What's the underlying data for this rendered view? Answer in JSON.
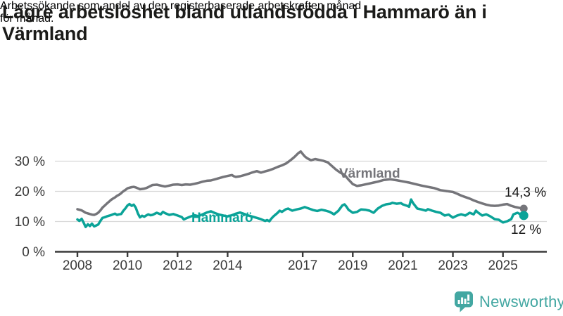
{
  "header": {
    "title_lines": [
      "Lägre arbetslöshet bland utlandsfödda i Hammarö än i",
      "Värmland"
    ],
    "subtitle_lines": [
      "Arbetssökande som andel av den registerbaserade arbetskraften månad",
      "för månad."
    ]
  },
  "chart_data": {
    "type": "line",
    "unit": "%",
    "x_axis": {
      "range_years": [
        2008.0,
        2025.83
      ],
      "ticks": [
        {
          "year": 2008,
          "label": "2008"
        },
        {
          "year": 2010,
          "label": "2010"
        },
        {
          "year": 2012,
          "label": "2012"
        },
        {
          "year": 2014,
          "label": "2014"
        },
        {
          "year": 2017,
          "label": "2017"
        },
        {
          "year": 2019,
          "label": "2019"
        },
        {
          "year": 2021,
          "label": "2021"
        },
        {
          "year": 2023,
          "label": "2023"
        },
        {
          "year": 2025,
          "label": "2025"
        }
      ]
    },
    "y_axis": {
      "range": [
        0,
        34.5
      ],
      "gridlines": true,
      "ticks": [
        {
          "value": 0,
          "label": "0 %"
        },
        {
          "value": 10,
          "label": "10 %"
        },
        {
          "value": 20,
          "label": "20 %"
        },
        {
          "value": 30,
          "label": "30 %"
        }
      ]
    },
    "colors": {
      "grid": "#d8d8d8",
      "axis": "#3a3a3a",
      "tick_text": "#3a3a3a"
    },
    "legend_position": "labels-on-lines",
    "series": [
      {
        "name": "Värmland",
        "color": "#75757a",
        "end_label": "14,3 %",
        "end_value": 14.3,
        "points": [
          [
            2008.0,
            14.1
          ],
          [
            2008.08,
            13.9
          ],
          [
            2008.17,
            13.7
          ],
          [
            2008.25,
            13.3
          ],
          [
            2008.33,
            12.9
          ],
          [
            2008.42,
            12.7
          ],
          [
            2008.5,
            12.5
          ],
          [
            2008.58,
            12.3
          ],
          [
            2008.67,
            12.2
          ],
          [
            2008.75,
            12.5
          ],
          [
            2008.83,
            12.9
          ],
          [
            2008.92,
            13.7
          ],
          [
            2009.0,
            14.6
          ],
          [
            2009.08,
            15.2
          ],
          [
            2009.17,
            15.9
          ],
          [
            2009.25,
            16.5
          ],
          [
            2009.33,
            17.1
          ],
          [
            2009.42,
            17.6
          ],
          [
            2009.5,
            18.0
          ],
          [
            2009.58,
            18.5
          ],
          [
            2009.67,
            18.9
          ],
          [
            2009.75,
            19.4
          ],
          [
            2009.83,
            20.0
          ],
          [
            2009.92,
            20.5
          ],
          [
            2010.0,
            21.0
          ],
          [
            2010.08,
            21.2
          ],
          [
            2010.17,
            21.4
          ],
          [
            2010.25,
            21.5
          ],
          [
            2010.33,
            21.3
          ],
          [
            2010.42,
            21.0
          ],
          [
            2010.5,
            20.7
          ],
          [
            2010.58,
            20.8
          ],
          [
            2010.67,
            20.9
          ],
          [
            2010.75,
            21.1
          ],
          [
            2010.83,
            21.4
          ],
          [
            2010.92,
            21.8
          ],
          [
            2011.0,
            22.1
          ],
          [
            2011.17,
            22.2
          ],
          [
            2011.33,
            21.9
          ],
          [
            2011.5,
            21.6
          ],
          [
            2011.67,
            21.9
          ],
          [
            2011.83,
            22.2
          ],
          [
            2012.0,
            22.3
          ],
          [
            2012.17,
            22.1
          ],
          [
            2012.33,
            22.3
          ],
          [
            2012.5,
            22.2
          ],
          [
            2012.67,
            22.5
          ],
          [
            2012.83,
            22.8
          ],
          [
            2013.0,
            23.2
          ],
          [
            2013.17,
            23.5
          ],
          [
            2013.33,
            23.6
          ],
          [
            2013.5,
            24.0
          ],
          [
            2013.67,
            24.4
          ],
          [
            2013.83,
            24.8
          ],
          [
            2014.0,
            25.1
          ],
          [
            2014.17,
            25.4
          ],
          [
            2014.25,
            25.0
          ],
          [
            2014.33,
            24.8
          ],
          [
            2014.5,
            25.0
          ],
          [
            2014.67,
            25.4
          ],
          [
            2014.83,
            25.8
          ],
          [
            2015.0,
            26.3
          ],
          [
            2015.17,
            26.7
          ],
          [
            2015.33,
            26.2
          ],
          [
            2015.5,
            26.6
          ],
          [
            2015.67,
            27.0
          ],
          [
            2015.83,
            27.5
          ],
          [
            2016.0,
            28.1
          ],
          [
            2016.17,
            28.6
          ],
          [
            2016.33,
            29.2
          ],
          [
            2016.5,
            30.2
          ],
          [
            2016.67,
            31.4
          ],
          [
            2016.83,
            32.7
          ],
          [
            2016.92,
            33.2
          ],
          [
            2017.0,
            32.4
          ],
          [
            2017.08,
            31.6
          ],
          [
            2017.17,
            31.0
          ],
          [
            2017.33,
            30.3
          ],
          [
            2017.5,
            30.7
          ],
          [
            2017.67,
            30.4
          ],
          [
            2017.83,
            30.1
          ],
          [
            2018.0,
            29.6
          ],
          [
            2018.17,
            28.4
          ],
          [
            2018.33,
            27.2
          ],
          [
            2018.5,
            26.2
          ],
          [
            2018.67,
            25.5
          ],
          [
            2018.83,
            23.9
          ],
          [
            2019.0,
            22.4
          ],
          [
            2019.17,
            21.8
          ],
          [
            2019.33,
            22.0
          ],
          [
            2019.5,
            22.3
          ],
          [
            2019.67,
            22.6
          ],
          [
            2019.83,
            22.9
          ],
          [
            2020.0,
            23.2
          ],
          [
            2020.25,
            23.8
          ],
          [
            2020.5,
            24.0
          ],
          [
            2020.75,
            23.7
          ],
          [
            2021.0,
            23.3
          ],
          [
            2021.25,
            22.9
          ],
          [
            2021.5,
            22.4
          ],
          [
            2021.75,
            21.9
          ],
          [
            2022.0,
            21.5
          ],
          [
            2022.25,
            21.1
          ],
          [
            2022.5,
            20.4
          ],
          [
            2022.75,
            20.1
          ],
          [
            2023.0,
            19.8
          ],
          [
            2023.17,
            19.2
          ],
          [
            2023.33,
            18.6
          ],
          [
            2023.5,
            18.1
          ],
          [
            2023.67,
            17.6
          ],
          [
            2023.83,
            17.0
          ],
          [
            2024.0,
            16.5
          ],
          [
            2024.17,
            16.0
          ],
          [
            2024.33,
            15.6
          ],
          [
            2024.5,
            15.3
          ],
          [
            2024.67,
            15.2
          ],
          [
            2024.83,
            15.3
          ],
          [
            2025.0,
            15.6
          ],
          [
            2025.17,
            15.8
          ],
          [
            2025.33,
            15.2
          ],
          [
            2025.5,
            14.8
          ],
          [
            2025.67,
            14.5
          ],
          [
            2025.83,
            14.3
          ]
        ]
      },
      {
        "name": "Hammarö",
        "color": "#0ba398",
        "end_label": "12 %",
        "end_value": 12.0,
        "points": [
          [
            2008.0,
            10.7
          ],
          [
            2008.08,
            10.2
          ],
          [
            2008.17,
            10.9
          ],
          [
            2008.25,
            9.6
          ],
          [
            2008.33,
            8.2
          ],
          [
            2008.42,
            9.1
          ],
          [
            2008.5,
            8.5
          ],
          [
            2008.58,
            9.3
          ],
          [
            2008.67,
            8.4
          ],
          [
            2008.75,
            8.7
          ],
          [
            2008.83,
            9.0
          ],
          [
            2008.92,
            10.2
          ],
          [
            2009.0,
            11.2
          ],
          [
            2009.08,
            11.4
          ],
          [
            2009.17,
            11.7
          ],
          [
            2009.25,
            11.9
          ],
          [
            2009.33,
            12.1
          ],
          [
            2009.42,
            12.4
          ],
          [
            2009.5,
            12.6
          ],
          [
            2009.58,
            12.2
          ],
          [
            2009.67,
            12.4
          ],
          [
            2009.75,
            12.5
          ],
          [
            2009.83,
            13.5
          ],
          [
            2009.92,
            14.4
          ],
          [
            2010.0,
            15.3
          ],
          [
            2010.08,
            15.8
          ],
          [
            2010.17,
            15.2
          ],
          [
            2010.25,
            15.6
          ],
          [
            2010.33,
            14.6
          ],
          [
            2010.42,
            12.6
          ],
          [
            2010.5,
            11.4
          ],
          [
            2010.58,
            11.9
          ],
          [
            2010.67,
            11.6
          ],
          [
            2010.75,
            12.0
          ],
          [
            2010.83,
            12.4
          ],
          [
            2010.92,
            12.1
          ],
          [
            2011.0,
            12.2
          ],
          [
            2011.17,
            12.9
          ],
          [
            2011.33,
            12.4
          ],
          [
            2011.42,
            13.2
          ],
          [
            2011.5,
            12.8
          ],
          [
            2011.67,
            12.2
          ],
          [
            2011.83,
            12.5
          ],
          [
            2012.0,
            12.0
          ],
          [
            2012.17,
            11.5
          ],
          [
            2012.25,
            10.7
          ],
          [
            2012.33,
            11.0
          ],
          [
            2012.5,
            11.6
          ],
          [
            2012.67,
            12.1
          ],
          [
            2012.83,
            11.8
          ],
          [
            2013.0,
            12.4
          ],
          [
            2013.17,
            13.0
          ],
          [
            2013.33,
            13.4
          ],
          [
            2013.5,
            12.8
          ],
          [
            2013.67,
            12.3
          ],
          [
            2013.83,
            12.0
          ],
          [
            2014.0,
            11.7
          ],
          [
            2014.17,
            12.1
          ],
          [
            2014.33,
            12.6
          ],
          [
            2014.5,
            13.0
          ],
          [
            2014.67,
            12.5
          ],
          [
            2014.83,
            12.0
          ],
          [
            2015.0,
            11.6
          ],
          [
            2015.17,
            11.2
          ],
          [
            2015.33,
            10.8
          ],
          [
            2015.5,
            10.2
          ],
          [
            2015.58,
            10.5
          ],
          [
            2015.67,
            10.1
          ],
          [
            2015.75,
            11.0
          ],
          [
            2015.83,
            11.7
          ],
          [
            2016.0,
            12.9
          ],
          [
            2016.08,
            13.6
          ],
          [
            2016.17,
            13.2
          ],
          [
            2016.33,
            14.1
          ],
          [
            2016.42,
            14.3
          ],
          [
            2016.58,
            13.6
          ],
          [
            2016.75,
            14.0
          ],
          [
            2016.92,
            14.3
          ],
          [
            2017.08,
            14.8
          ],
          [
            2017.25,
            14.3
          ],
          [
            2017.42,
            13.8
          ],
          [
            2017.58,
            13.5
          ],
          [
            2017.75,
            13.9
          ],
          [
            2017.92,
            13.6
          ],
          [
            2018.08,
            13.2
          ],
          [
            2018.25,
            12.4
          ],
          [
            2018.42,
            13.5
          ],
          [
            2018.58,
            15.3
          ],
          [
            2018.67,
            15.7
          ],
          [
            2018.75,
            14.9
          ],
          [
            2018.83,
            13.9
          ],
          [
            2019.0,
            12.9
          ],
          [
            2019.17,
            13.2
          ],
          [
            2019.33,
            14.0
          ],
          [
            2019.5,
            13.9
          ],
          [
            2019.67,
            13.6
          ],
          [
            2019.83,
            12.9
          ],
          [
            2020.0,
            14.3
          ],
          [
            2020.17,
            15.2
          ],
          [
            2020.33,
            15.7
          ],
          [
            2020.5,
            15.9
          ],
          [
            2020.58,
            16.2
          ],
          [
            2020.75,
            15.9
          ],
          [
            2020.92,
            16.1
          ],
          [
            2021.0,
            15.7
          ],
          [
            2021.17,
            15.2
          ],
          [
            2021.25,
            14.9
          ],
          [
            2021.33,
            17.3
          ],
          [
            2021.42,
            16.0
          ],
          [
            2021.58,
            14.3
          ],
          [
            2021.75,
            14.0
          ],
          [
            2021.92,
            13.6
          ],
          [
            2022.0,
            14.1
          ],
          [
            2022.17,
            13.6
          ],
          [
            2022.33,
            13.2
          ],
          [
            2022.5,
            12.9
          ],
          [
            2022.67,
            12.0
          ],
          [
            2022.83,
            12.3
          ],
          [
            2023.0,
            11.3
          ],
          [
            2023.17,
            12.0
          ],
          [
            2023.33,
            12.4
          ],
          [
            2023.5,
            12.0
          ],
          [
            2023.67,
            12.9
          ],
          [
            2023.83,
            12.4
          ],
          [
            2023.92,
            13.6
          ],
          [
            2024.0,
            13.0
          ],
          [
            2024.17,
            12.0
          ],
          [
            2024.33,
            12.4
          ],
          [
            2024.5,
            11.7
          ],
          [
            2024.67,
            10.8
          ],
          [
            2024.83,
            10.6
          ],
          [
            2025.0,
            9.7
          ],
          [
            2025.17,
            10.1
          ],
          [
            2025.33,
            10.8
          ],
          [
            2025.42,
            12.4
          ],
          [
            2025.58,
            12.9
          ],
          [
            2025.7,
            12.4
          ],
          [
            2025.83,
            12.0
          ]
        ]
      }
    ]
  },
  "footer": {
    "brand": "Newsworthy",
    "brand_color": "#43a7a2",
    "logo_icon": "bar-chart-speech-bubble-icon"
  }
}
